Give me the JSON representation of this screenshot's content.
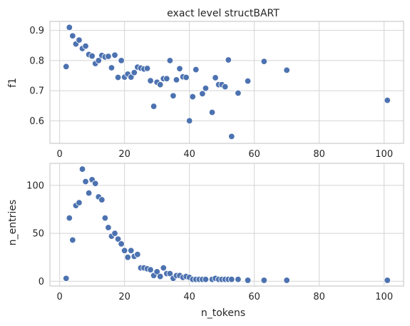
{
  "chart_data": [
    {
      "type": "scatter",
      "title": "exact level structBART",
      "xlabel": "",
      "ylabel": "f1",
      "xlim": [
        -3,
        106
      ],
      "ylim": [
        0.525,
        0.93
      ],
      "xticks": [
        0,
        20,
        40,
        60,
        80,
        100
      ],
      "yticks": [
        0.6,
        0.7,
        0.8,
        0.9
      ],
      "ytick_labels": [
        "0.6",
        "0.7",
        "0.8",
        "0.9"
      ],
      "grid": true,
      "color": "#4c72b0",
      "points": [
        [
          2,
          0.78
        ],
        [
          3,
          0.91
        ],
        [
          4,
          0.882
        ],
        [
          5,
          0.855
        ],
        [
          6,
          0.868
        ],
        [
          7,
          0.84
        ],
        [
          8,
          0.848
        ],
        [
          9,
          0.82
        ],
        [
          10,
          0.815
        ],
        [
          11,
          0.79
        ],
        [
          12,
          0.8
        ],
        [
          13,
          0.817
        ],
        [
          14,
          0.812
        ],
        [
          15,
          0.814
        ],
        [
          16,
          0.776
        ],
        [
          17,
          0.818
        ],
        [
          18,
          0.744
        ],
        [
          19,
          0.8
        ],
        [
          20,
          0.745
        ],
        [
          21,
          0.755
        ],
        [
          22,
          0.745
        ],
        [
          23,
          0.76
        ],
        [
          24,
          0.778
        ],
        [
          25,
          0.775
        ],
        [
          26,
          0.772
        ],
        [
          27,
          0.774
        ],
        [
          28,
          0.733
        ],
        [
          29,
          0.648
        ],
        [
          30,
          0.728
        ],
        [
          31,
          0.72
        ],
        [
          32,
          0.74
        ],
        [
          33,
          0.74
        ],
        [
          34,
          0.8
        ],
        [
          35,
          0.683
        ],
        [
          36,
          0.736
        ],
        [
          37,
          0.773
        ],
        [
          38,
          0.746
        ],
        [
          39,
          0.744
        ],
        [
          40,
          0.6
        ],
        [
          41,
          0.68
        ],
        [
          42,
          0.77
        ],
        [
          44,
          0.69
        ],
        [
          45,
          0.708
        ],
        [
          47,
          0.628
        ],
        [
          48,
          0.743
        ],
        [
          49,
          0.72
        ],
        [
          50,
          0.72
        ],
        [
          51,
          0.713
        ],
        [
          52,
          0.802
        ],
        [
          53,
          0.548
        ],
        [
          55,
          0.692
        ],
        [
          58,
          0.732
        ],
        [
          63,
          0.797
        ],
        [
          70,
          0.768
        ],
        [
          101,
          0.668
        ]
      ]
    },
    {
      "type": "scatter",
      "title": "",
      "xlabel": "n_tokens",
      "ylabel": "n_entries",
      "xlim": [
        -3,
        106
      ],
      "ylim": [
        -5,
        123
      ],
      "xticks": [
        0,
        20,
        40,
        60,
        80,
        100
      ],
      "yticks": [
        0,
        50,
        100
      ],
      "ytick_labels": [
        "0",
        "50",
        "100"
      ],
      "grid": true,
      "color": "#4c72b0",
      "points": [
        [
          2,
          3
        ],
        [
          3,
          66
        ],
        [
          4,
          43
        ],
        [
          5,
          79
        ],
        [
          6,
          82
        ],
        [
          7,
          117
        ],
        [
          8,
          104
        ],
        [
          9,
          92
        ],
        [
          10,
          106
        ],
        [
          11,
          102
        ],
        [
          12,
          88
        ],
        [
          13,
          85
        ],
        [
          14,
          66
        ],
        [
          15,
          56
        ],
        [
          16,
          47
        ],
        [
          17,
          50
        ],
        [
          18,
          44
        ],
        [
          19,
          39
        ],
        [
          20,
          32
        ],
        [
          21,
          25
        ],
        [
          22,
          32
        ],
        [
          23,
          26
        ],
        [
          24,
          28
        ],
        [
          25,
          14
        ],
        [
          26,
          14
        ],
        [
          27,
          13
        ],
        [
          28,
          12
        ],
        [
          29,
          6
        ],
        [
          30,
          10
        ],
        [
          31,
          5
        ],
        [
          32,
          14
        ],
        [
          33,
          8
        ],
        [
          34,
          8
        ],
        [
          35,
          3
        ],
        [
          36,
          6
        ],
        [
          37,
          6
        ],
        [
          38,
          4
        ],
        [
          39,
          5
        ],
        [
          40,
          4
        ],
        [
          41,
          2
        ],
        [
          42,
          2
        ],
        [
          43,
          2
        ],
        [
          44,
          2
        ],
        [
          45,
          2
        ],
        [
          47,
          2
        ],
        [
          48,
          3
        ],
        [
          49,
          2
        ],
        [
          50,
          2
        ],
        [
          51,
          2
        ],
        [
          52,
          2
        ],
        [
          53,
          2
        ],
        [
          55,
          2
        ],
        [
          58,
          1
        ],
        [
          63,
          1
        ],
        [
          70,
          1
        ],
        [
          101,
          1
        ]
      ]
    }
  ]
}
